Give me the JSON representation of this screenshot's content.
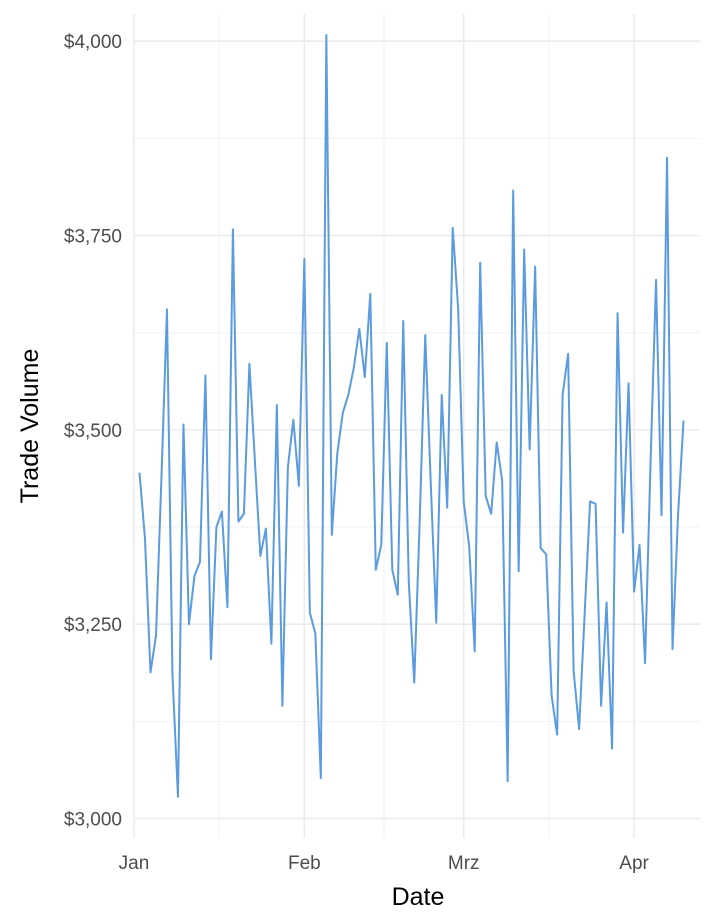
{
  "chart_data": {
    "type": "line",
    "title": "",
    "xlabel": "Date",
    "ylabel": "Trade Volume",
    "x_axis": {
      "type": "date",
      "range": [
        "2024-01-01",
        "2024-04-13"
      ],
      "ticks": [
        {
          "value": "2024-01-01",
          "label": "Jan"
        },
        {
          "value": "2024-02-01",
          "label": "Feb"
        },
        {
          "value": "2024-03-01",
          "label": "Mrz"
        },
        {
          "value": "2024-04-01",
          "label": "Apr"
        }
      ]
    },
    "y_axis": {
      "range": [
        2975,
        4035
      ],
      "ticks": [
        {
          "value": 3000,
          "label": "$3,000"
        },
        {
          "value": 3250,
          "label": "$3,250"
        },
        {
          "value": 3500,
          "label": "$3,500"
        },
        {
          "value": 3750,
          "label": "$3,750"
        },
        {
          "value": 4000,
          "label": "$4,000"
        }
      ]
    },
    "grid": true,
    "line_color": "#5B9BE0",
    "series": [
      {
        "x": [
          "2024-01-02",
          "2024-01-03",
          "2024-01-04",
          "2024-01-05",
          "2024-01-06",
          "2024-01-07",
          "2024-01-08",
          "2024-01-09",
          "2024-01-10",
          "2024-01-11",
          "2024-01-12",
          "2024-01-13",
          "2024-01-14",
          "2024-01-15",
          "2024-01-16",
          "2024-01-17",
          "2024-01-18",
          "2024-01-19",
          "2024-01-20",
          "2024-01-21",
          "2024-01-22",
          "2024-01-23",
          "2024-01-24",
          "2024-01-25",
          "2024-01-26",
          "2024-01-27",
          "2024-01-28",
          "2024-01-29",
          "2024-01-30",
          "2024-01-31",
          "2024-02-01",
          "2024-02-02",
          "2024-02-03",
          "2024-02-04",
          "2024-02-05",
          "2024-02-06",
          "2024-02-07",
          "2024-02-08",
          "2024-02-09",
          "2024-02-10",
          "2024-02-11",
          "2024-02-12",
          "2024-02-13",
          "2024-02-14",
          "2024-02-15",
          "2024-02-16",
          "2024-02-17",
          "2024-02-18",
          "2024-02-19",
          "2024-02-20",
          "2024-02-21",
          "2024-02-22",
          "2024-02-23",
          "2024-02-24",
          "2024-02-25",
          "2024-02-26",
          "2024-02-27",
          "2024-02-28",
          "2024-02-29",
          "2024-03-01",
          "2024-03-02",
          "2024-03-03",
          "2024-03-04",
          "2024-03-05",
          "2024-03-06",
          "2024-03-07",
          "2024-03-08",
          "2024-03-09",
          "2024-03-10",
          "2024-03-11",
          "2024-03-12",
          "2024-03-13",
          "2024-03-14",
          "2024-03-15",
          "2024-03-16",
          "2024-03-17",
          "2024-03-18",
          "2024-03-19",
          "2024-03-20",
          "2024-03-21",
          "2024-03-22",
          "2024-03-23",
          "2024-03-24",
          "2024-03-25",
          "2024-03-26",
          "2024-03-27",
          "2024-03-28",
          "2024-03-29",
          "2024-03-30",
          "2024-03-31",
          "2024-04-01",
          "2024-04-02",
          "2024-04-03",
          "2024-04-04",
          "2024-04-05",
          "2024-04-06",
          "2024-04-07",
          "2024-04-08",
          "2024-04-09",
          "2024-04-10"
        ],
        "y": [
          3445,
          3360,
          3188,
          3235,
          3440,
          3655,
          3185,
          3028,
          3507,
          3250,
          3312,
          3330,
          3570,
          3205,
          3375,
          3395,
          3272,
          3758,
          3382,
          3392,
          3585,
          3460,
          3338,
          3373,
          3225,
          3532,
          3145,
          3452,
          3513,
          3428,
          3720,
          3265,
          3238,
          3052,
          4008,
          3365,
          3470,
          3522,
          3545,
          3580,
          3630,
          3568,
          3675,
          3320,
          3352,
          3612,
          3320,
          3288,
          3640,
          3305,
          3175,
          3385,
          3622,
          3432,
          3252,
          3545,
          3400,
          3760,
          3655,
          3408,
          3350,
          3215,
          3715,
          3415,
          3392,
          3484,
          3435,
          3048,
          3808,
          3318,
          3732,
          3475,
          3710,
          3348,
          3340,
          3158,
          3108,
          3545,
          3598,
          3190,
          3115,
          3262,
          3408,
          3405,
          3145,
          3278,
          3090,
          3650,
          3368,
          3560,
          3292,
          3352,
          3200,
          3458,
          3693,
          3390,
          3850,
          3218,
          3390,
          3512
        ]
      }
    ]
  }
}
